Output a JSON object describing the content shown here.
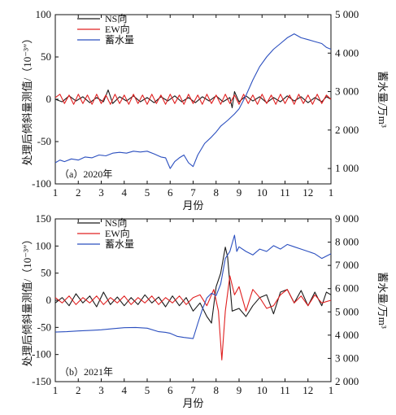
{
  "chart_data": [
    {
      "type": "line",
      "panel_label": "（a）2020年",
      "xlabel": "月份",
      "ylabel_left": "处理后倾斜量测值/（10⁻³″）",
      "ylabel_right": "蓄水量/万m³",
      "x_ticks": [
        "1",
        "2",
        "3",
        "4",
        "5",
        "6",
        "7",
        "8",
        "9",
        "10",
        "11",
        "12",
        "1"
      ],
      "y_left_ticks": [
        "100",
        "50",
        "0",
        "-50",
        "-100"
      ],
      "y_right_ticks": [
        "5 000",
        "4 000",
        "3 000",
        "2 000",
        "1 000"
      ],
      "ylim_left": [
        -100,
        100
      ],
      "ylim_right": [
        600,
        5000
      ],
      "xlim": [
        1,
        13
      ],
      "legend": [
        "NS向",
        "EW向",
        "蓄水量"
      ],
      "colors": {
        "NS": "#1a1a1a",
        "EW": "#e02020",
        "storage": "#2b4fbf"
      },
      "series": [
        {
          "name": "NS向",
          "axis": "left",
          "x": [
            1.0,
            1.3,
            1.6,
            1.9,
            2.2,
            2.5,
            2.8,
            3.1,
            3.3,
            3.5,
            3.8,
            4.1,
            4.4,
            4.7,
            5.0,
            5.3,
            5.6,
            5.9,
            6.2,
            6.5,
            6.8,
            7.1,
            7.4,
            7.7,
            8.0,
            8.3,
            8.6,
            8.7,
            8.8,
            9.0,
            9.3,
            9.6,
            9.9,
            10.2,
            10.5,
            10.8,
            11.1,
            11.4,
            11.7,
            12.0,
            12.3,
            12.6,
            12.8,
            13.0
          ],
          "y": [
            0,
            -3,
            4,
            -2,
            3,
            -4,
            2,
            -3,
            11,
            -5,
            3,
            -2,
            4,
            -3,
            2,
            -4,
            3,
            -2,
            4,
            -3,
            2,
            -4,
            3,
            -2,
            4,
            -3,
            2,
            -10,
            9,
            -3,
            4,
            -2,
            3,
            -4,
            2,
            -3,
            4,
            -2,
            3,
            -4,
            2,
            -3,
            3,
            0
          ]
        },
        {
          "name": "EW向",
          "axis": "left",
          "x": [
            1.0,
            1.2,
            1.4,
            1.6,
            1.8,
            2.0,
            2.2,
            2.4,
            2.6,
            2.8,
            3.0,
            3.2,
            3.4,
            3.6,
            3.8,
            4.0,
            4.2,
            4.4,
            4.6,
            4.8,
            5.0,
            5.2,
            5.4,
            5.6,
            5.8,
            6.0,
            6.2,
            6.4,
            6.6,
            6.8,
            7.0,
            7.2,
            7.4,
            7.6,
            7.8,
            8.0,
            8.2,
            8.4,
            8.6,
            8.8,
            9.0,
            9.2,
            9.4,
            9.6,
            9.8,
            10.0,
            10.2,
            10.4,
            10.6,
            10.8,
            11.0,
            11.2,
            11.4,
            11.6,
            11.8,
            12.0,
            12.2,
            12.4,
            12.6,
            12.8,
            13.0
          ],
          "y": [
            2,
            6,
            -5,
            5,
            -6,
            6,
            -5,
            5,
            -6,
            6,
            -5,
            5,
            -6,
            6,
            -5,
            5,
            -6,
            6,
            -5,
            5,
            -6,
            6,
            -5,
            5,
            -6,
            6,
            -5,
            5,
            -6,
            6,
            -5,
            5,
            -6,
            6,
            -5,
            5,
            -6,
            6,
            -5,
            5,
            -6,
            6,
            -5,
            5,
            -6,
            6,
            -5,
            5,
            -6,
            6,
            -5,
            5,
            -6,
            6,
            -5,
            5,
            -6,
            6,
            -5,
            5,
            0
          ]
        },
        {
          "name": "蓄水量",
          "axis": "right",
          "x": [
            1.0,
            1.2,
            1.4,
            1.7,
            2.0,
            2.3,
            2.6,
            2.9,
            3.2,
            3.5,
            3.8,
            4.1,
            4.4,
            4.7,
            5.0,
            5.3,
            5.6,
            5.8,
            6.0,
            6.2,
            6.4,
            6.6,
            6.8,
            7.0,
            7.2,
            7.5,
            7.8,
            8.0,
            8.2,
            8.5,
            8.8,
            9.0,
            9.3,
            9.6,
            9.9,
            10.2,
            10.5,
            10.8,
            11.1,
            11.4,
            11.7,
            12.0,
            12.3,
            12.6,
            12.8,
            13.0
          ],
          "y": [
            1150,
            1220,
            1180,
            1250,
            1220,
            1300,
            1280,
            1350,
            1330,
            1400,
            1420,
            1400,
            1450,
            1430,
            1450,
            1380,
            1300,
            1280,
            1000,
            1180,
            1280,
            1350,
            1150,
            1050,
            1350,
            1650,
            1820,
            1950,
            2100,
            2250,
            2420,
            2550,
            2900,
            3300,
            3650,
            3900,
            4100,
            4250,
            4400,
            4500,
            4400,
            4350,
            4300,
            4250,
            4150,
            4100
          ]
        }
      ]
    },
    {
      "type": "line",
      "panel_label": "（b）2021年",
      "xlabel": "月份",
      "ylabel_left": "处理后倾斜量测值/（10⁻³″）",
      "ylabel_right": "蓄水量/万m³",
      "x_ticks": [
        "1",
        "2",
        "3",
        "4",
        "5",
        "6",
        "7",
        "8",
        "9",
        "10",
        "11",
        "12",
        "1"
      ],
      "y_left_ticks": [
        "150",
        "100",
        "50",
        "0",
        "-50",
        "-100",
        "-150"
      ],
      "y_right_ticks": [
        "9 000",
        "8 000",
        "7 000",
        "6 000",
        "5 000",
        "4 000",
        "3 000",
        "2 000"
      ],
      "ylim_left": [
        -150,
        150
      ],
      "ylim_right": [
        2000,
        9000
      ],
      "xlim": [
        1,
        13
      ],
      "legend": [
        "NS向",
        "EW向",
        "蓄水量"
      ],
      "colors": {
        "NS": "#1a1a1a",
        "EW": "#e02020",
        "storage": "#2b4fbf"
      },
      "series": [
        {
          "name": "NS向",
          "axis": "left",
          "x": [
            1.0,
            1.3,
            1.6,
            1.9,
            2.2,
            2.5,
            2.8,
            3.1,
            3.4,
            3.7,
            4.0,
            4.3,
            4.6,
            4.9,
            5.2,
            5.5,
            5.8,
            6.1,
            6.4,
            6.7,
            7.0,
            7.3,
            7.6,
            7.8,
            8.0,
            8.2,
            8.4,
            8.5,
            8.7,
            9.0,
            9.3,
            9.6,
            9.9,
            10.2,
            10.5,
            10.8,
            11.1,
            11.4,
            11.7,
            12.0,
            12.3,
            12.6,
            12.8,
            13.0
          ],
          "y": [
            -5,
            5,
            -10,
            12,
            -5,
            8,
            -12,
            15,
            -8,
            6,
            -10,
            5,
            -8,
            10,
            -5,
            6,
            -12,
            8,
            -10,
            5,
            -20,
            -5,
            -30,
            -42,
            25,
            50,
            98,
            80,
            -20,
            -15,
            -30,
            -10,
            5,
            10,
            -25,
            15,
            20,
            -5,
            18,
            -10,
            15,
            -10,
            15,
            10
          ]
        },
        {
          "name": "EW向",
          "axis": "left",
          "x": [
            1.0,
            1.3,
            1.6,
            1.9,
            2.2,
            2.5,
            2.8,
            3.1,
            3.4,
            3.7,
            4.0,
            4.3,
            4.6,
            4.9,
            5.2,
            5.5,
            5.8,
            6.1,
            6.4,
            6.7,
            7.0,
            7.3,
            7.6,
            7.9,
            8.1,
            8.25,
            8.4,
            8.6,
            8.8,
            9.0,
            9.3,
            9.6,
            9.9,
            10.2,
            10.5,
            10.8,
            11.1,
            11.4,
            11.7,
            12.0,
            12.3,
            12.6,
            13.0
          ],
          "y": [
            5,
            -5,
            8,
            -8,
            5,
            -5,
            8,
            -8,
            5,
            -5,
            8,
            -8,
            5,
            -5,
            8,
            -8,
            5,
            -5,
            8,
            -8,
            5,
            10,
            -10,
            20,
            -20,
            -110,
            -20,
            45,
            10,
            25,
            -20,
            20,
            5,
            -15,
            -10,
            10,
            20,
            -5,
            8,
            -10,
            10,
            -5,
            0
          ]
        },
        {
          "name": "蓄水量",
          "axis": "right",
          "x": [
            1.0,
            1.5,
            2.0,
            2.5,
            3.0,
            3.5,
            4.0,
            4.5,
            5.0,
            5.5,
            5.8,
            6.0,
            6.3,
            6.6,
            7.0,
            7.2,
            7.4,
            7.6,
            7.8,
            8.0,
            8.2,
            8.4,
            8.6,
            8.8,
            8.9,
            9.0,
            9.3,
            9.6,
            9.9,
            10.2,
            10.5,
            10.8,
            11.1,
            11.4,
            11.7,
            12.0,
            12.3,
            12.6,
            13.0
          ],
          "y": [
            4130,
            4150,
            4180,
            4200,
            4230,
            4280,
            4320,
            4330,
            4300,
            4150,
            4120,
            4080,
            3950,
            3900,
            3850,
            4500,
            5100,
            5600,
            5800,
            5700,
            6200,
            7300,
            7600,
            8300,
            7600,
            7800,
            7600,
            7450,
            7700,
            7600,
            7850,
            7700,
            7900,
            7800,
            7700,
            7600,
            7500,
            7300,
            7500
          ]
        }
      ]
    }
  ]
}
